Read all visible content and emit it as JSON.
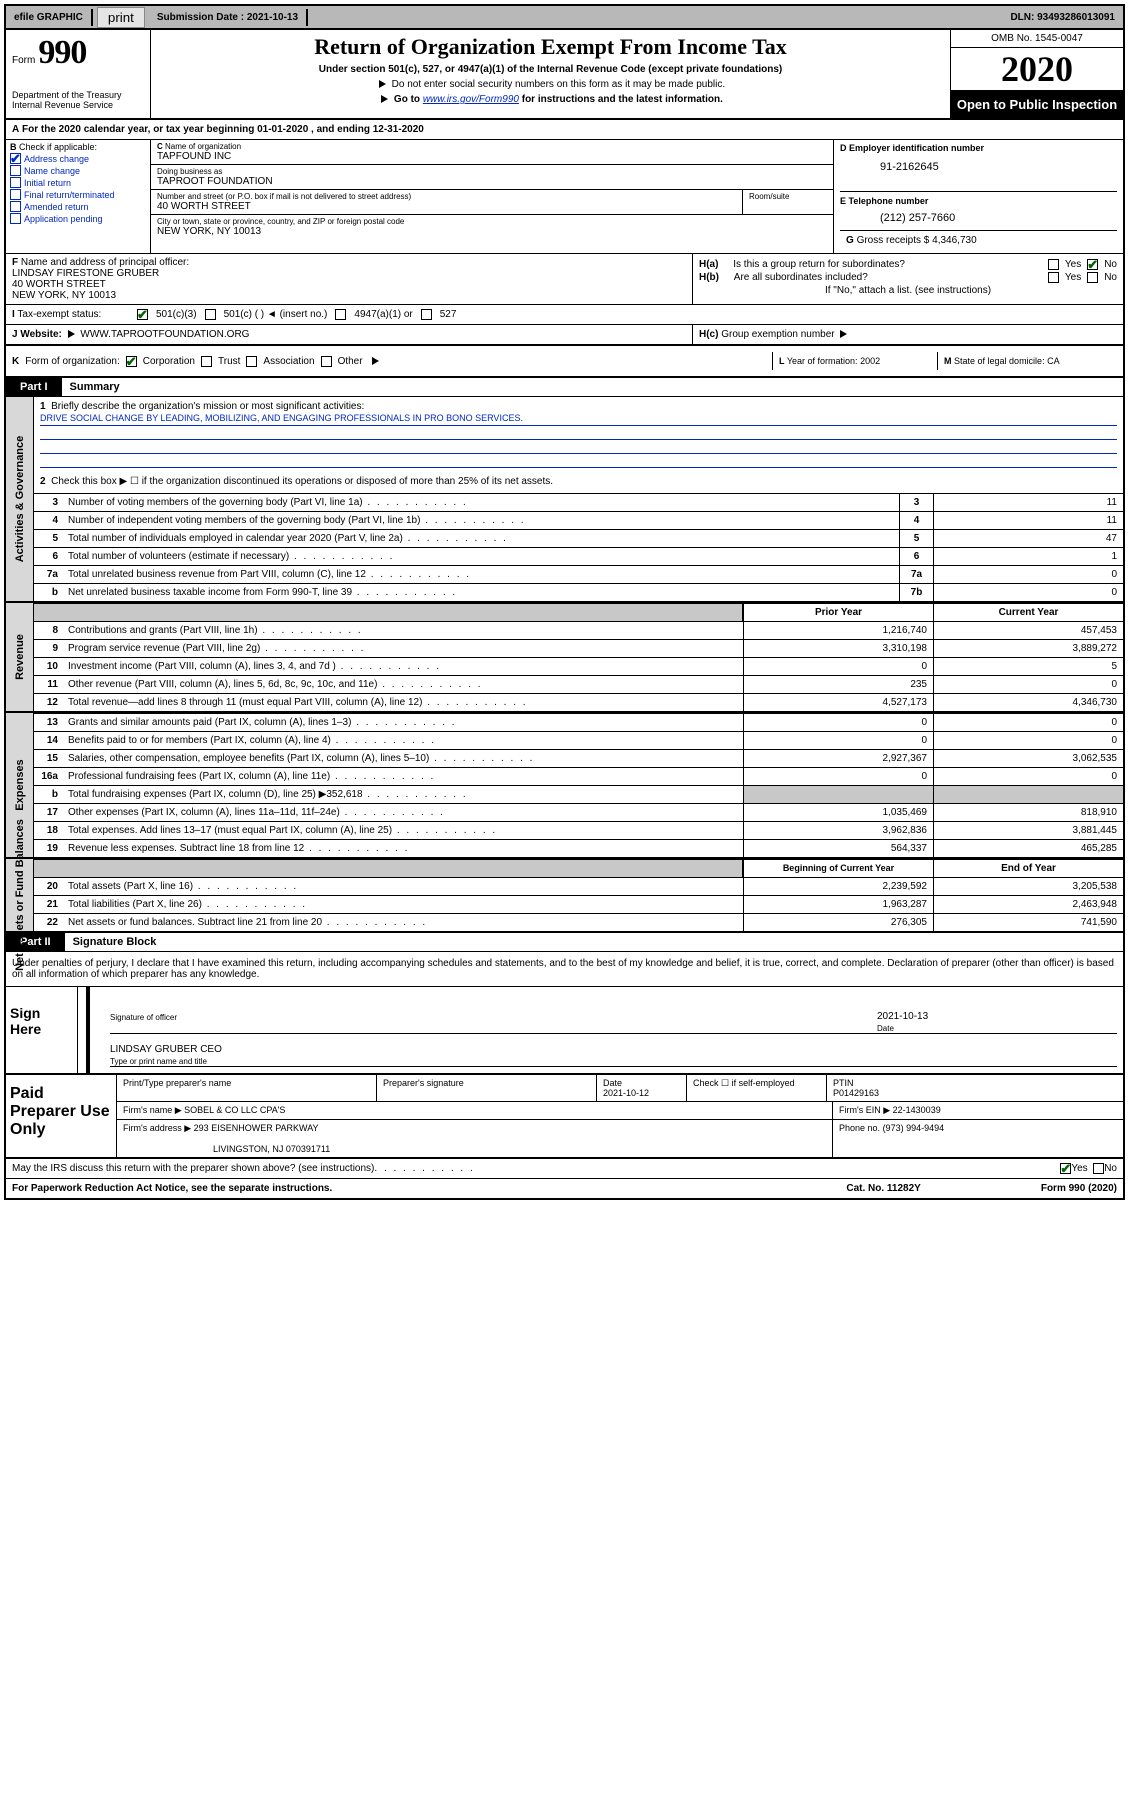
{
  "topbar": {
    "efile": "efile GRAPHIC",
    "print": "print",
    "submission_label": "Submission Date :",
    "submission_date": "2021-10-13",
    "dln_label": "DLN:",
    "dln": "93493286013091"
  },
  "header": {
    "form_word": "Form",
    "form_num": "990",
    "dept": "Department of the Treasury",
    "irs": "Internal Revenue Service",
    "title": "Return of Organization Exempt From Income Tax",
    "sub": "Under section 501(c), 527, or 4947(a)(1) of the Internal Revenue Code (except private foundations)",
    "sub2": "Do not enter social security numbers on this form as it may be made public.",
    "sub3_a": "Go to",
    "sub3_link": "www.irs.gov/Form990",
    "sub3_b": "for instructions and the latest information.",
    "omb": "OMB No. 1545-0047",
    "year": "2020",
    "open": "Open to Public Inspection"
  },
  "line_a": "For the 2020 calendar year, or tax year beginning 01-01-2020   , and ending 12-31-2020",
  "b": {
    "label": "Check if applicable:",
    "items": [
      "Address change",
      "Name change",
      "Initial return",
      "Final return/terminated",
      "Amended return",
      "Application pending"
    ],
    "checked_idx": 0
  },
  "c": {
    "name_lbl": "Name of organization",
    "name": "TAPFOUND INC",
    "dba_lbl": "Doing business as",
    "dba": "TAPROOT FOUNDATION",
    "street_lbl": "Number and street (or P.O. box if mail is not delivered to street address)",
    "room_lbl": "Room/suite",
    "street": "40 WORTH STREET",
    "city_lbl": "City or town, state or province, country, and ZIP or foreign postal code",
    "city": "NEW YORK, NY  10013"
  },
  "d": {
    "lbl": "D Employer identification number",
    "val": "91-2162645"
  },
  "e": {
    "lbl": "E Telephone number",
    "val": "(212) 257-7660"
  },
  "g": {
    "lbl": "Gross receipts $",
    "val": "4,346,730"
  },
  "f": {
    "lbl": "Name and address of principal officer:",
    "name": "LINDSAY FIRESTONE GRUBER",
    "street": "40 WORTH STREET",
    "city": "NEW YORK, NY  10013"
  },
  "h": {
    "a": "Is this a group return for subordinates?",
    "b": "Are all subordinates included?",
    "note": "If \"No,\" attach a list. (see instructions)",
    "c": "Group exemption number"
  },
  "i": {
    "lbl": "Tax-exempt status:",
    "opts": [
      "501(c)(3)",
      "501(c) (   )  ◄ (insert no.)",
      "4947(a)(1) or",
      "527"
    ]
  },
  "j": {
    "lbl": "Website:",
    "val": "WWW.TAPROOTFOUNDATION.ORG"
  },
  "k": {
    "lbl": "Form of organization:",
    "opts": [
      "Corporation",
      "Trust",
      "Association",
      "Other"
    ]
  },
  "l": {
    "lbl": "Year of formation:",
    "val": "2002"
  },
  "m": {
    "lbl": "State of legal domicile:",
    "val": "CA"
  },
  "part1": {
    "tab": "Part I",
    "title": "Summary",
    "q1": "Briefly describe the organization's mission or most significant activities:",
    "mission": "DRIVE SOCIAL CHANGE BY LEADING, MOBILIZING, AND ENGAGING PROFESSIONALS IN PRO BONO SERVICES.",
    "q2": "Check this box ▶ ☐  if the organization discontinued its operations or disposed of more than 25% of its net assets.",
    "lines_gov": [
      {
        "n": "3",
        "t": "Number of voting members of the governing body (Part VI, line 1a)",
        "box": "3",
        "v": "11"
      },
      {
        "n": "4",
        "t": "Number of independent voting members of the governing body (Part VI, line 1b)",
        "box": "4",
        "v": "11"
      },
      {
        "n": "5",
        "t": "Total number of individuals employed in calendar year 2020 (Part V, line 2a)",
        "box": "5",
        "v": "47"
      },
      {
        "n": "6",
        "t": "Total number of volunteers (estimate if necessary)",
        "box": "6",
        "v": "1"
      },
      {
        "n": "7a",
        "t": "Total unrelated business revenue from Part VIII, column (C), line 12",
        "box": "7a",
        "v": "0"
      },
      {
        "n": "b",
        "t": "Net unrelated business taxable income from Form 990-T, line 39",
        "box": "7b",
        "v": "0"
      }
    ],
    "col_prior": "Prior Year",
    "col_curr": "Current Year",
    "rev": [
      {
        "n": "8",
        "t": "Contributions and grants (Part VIII, line 1h)",
        "p": "1,216,740",
        "c": "457,453"
      },
      {
        "n": "9",
        "t": "Program service revenue (Part VIII, line 2g)",
        "p": "3,310,198",
        "c": "3,889,272"
      },
      {
        "n": "10",
        "t": "Investment income (Part VIII, column (A), lines 3, 4, and 7d )",
        "p": "0",
        "c": "5"
      },
      {
        "n": "11",
        "t": "Other revenue (Part VIII, column (A), lines 5, 6d, 8c, 9c, 10c, and 11e)",
        "p": "235",
        "c": "0"
      },
      {
        "n": "12",
        "t": "Total revenue—add lines 8 through 11 (must equal Part VIII, column (A), line 12)",
        "p": "4,527,173",
        "c": "4,346,730"
      }
    ],
    "exp": [
      {
        "n": "13",
        "t": "Grants and similar amounts paid (Part IX, column (A), lines 1–3)",
        "p": "0",
        "c": "0"
      },
      {
        "n": "14",
        "t": "Benefits paid to or for members (Part IX, column (A), line 4)",
        "p": "0",
        "c": "0"
      },
      {
        "n": "15",
        "t": "Salaries, other compensation, employee benefits (Part IX, column (A), lines 5–10)",
        "p": "2,927,367",
        "c": "3,062,535"
      },
      {
        "n": "16a",
        "t": "Professional fundraising fees (Part IX, column (A), line 11e)",
        "p": "0",
        "c": "0"
      },
      {
        "n": "b",
        "t": "Total fundraising expenses (Part IX, column (D), line 25) ▶352,618",
        "p": "shade",
        "c": "shade"
      },
      {
        "n": "17",
        "t": "Other expenses (Part IX, column (A), lines 11a–11d, 11f–24e)",
        "p": "1,035,469",
        "c": "818,910"
      },
      {
        "n": "18",
        "t": "Total expenses. Add lines 13–17 (must equal Part IX, column (A), line 25)",
        "p": "3,962,836",
        "c": "3,881,445"
      },
      {
        "n": "19",
        "t": "Revenue less expenses. Subtract line 18 from line 12",
        "p": "564,337",
        "c": "465,285"
      }
    ],
    "col_begin": "Beginning of Current Year",
    "col_end": "End of Year",
    "net": [
      {
        "n": "20",
        "t": "Total assets (Part X, line 16)",
        "p": "2,239,592",
        "c": "3,205,538"
      },
      {
        "n": "21",
        "t": "Total liabilities (Part X, line 26)",
        "p": "1,963,287",
        "c": "2,463,948"
      },
      {
        "n": "22",
        "t": "Net assets or fund balances. Subtract line 21 from line 20",
        "p": "276,305",
        "c": "741,590"
      }
    ],
    "vtabs": [
      "Activities & Governance",
      "Revenue",
      "Expenses",
      "Net Assets or Fund Balances"
    ]
  },
  "part2": {
    "tab": "Part II",
    "title": "Signature Block",
    "decl": "Under penalties of perjury, I declare that I have examined this return, including accompanying schedules and statements, and to the best of my knowledge and belief, it is true, correct, and complete. Declaration of preparer (other than officer) is based on all information of which preparer has any knowledge.",
    "sign_here": "Sign Here",
    "sig_officer": "Signature of officer",
    "sig_date_lbl": "Date",
    "sig_date": "2021-10-13",
    "name_title": "LINDSAY GRUBER  CEO",
    "name_title_lbl": "Type or print name and title",
    "paid": "Paid Preparer Use Only",
    "prep_name_lbl": "Print/Type preparer's name",
    "prep_sig_lbl": "Preparer's signature",
    "prep_date_lbl": "Date",
    "prep_date": "2021-10-12",
    "self_emp": "Check ☐ if self-employed",
    "ptin_lbl": "PTIN",
    "ptin": "P01429163",
    "firm_name_lbl": "Firm's name   ▶",
    "firm_name": "SOBEL & CO LLC CPA'S",
    "firm_ein_lbl": "Firm's EIN ▶",
    "firm_ein": "22-1430039",
    "firm_addr_lbl": "Firm's address ▶",
    "firm_addr": "293 EISENHOWER PARKWAY",
    "firm_city": "LIVINGSTON, NJ  070391711",
    "phone_lbl": "Phone no.",
    "phone": "(973) 994-9494",
    "discuss": "May the IRS discuss this return with the preparer shown above? (see instructions)",
    "paperwork": "For Paperwork Reduction Act Notice, see the separate instructions.",
    "cat": "Cat. No. 11282Y",
    "form_foot": "Form 990 (2020)"
  },
  "colors": {
    "link": "#0028c2",
    "check_green": "#006400",
    "shade": "#c8c8c8",
    "vtab_bg": "#d8d8d8"
  }
}
